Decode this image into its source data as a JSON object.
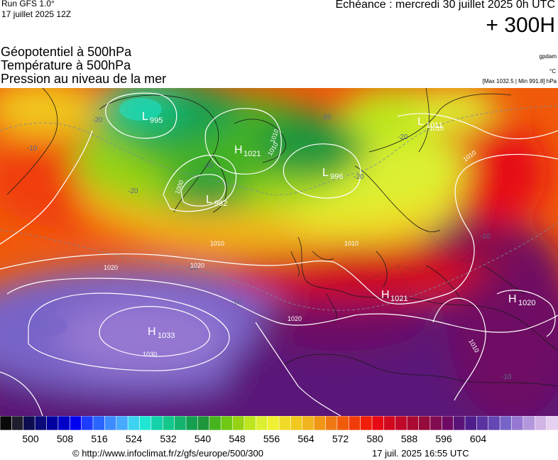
{
  "header": {
    "run": "Run GFS 1.0°",
    "date": "17 juillet 2025 12Z",
    "echeance": "Echéance : mercredi 30 juillet 2025 0h UTC",
    "horizon": "+ 300H"
  },
  "layers": [
    "Géopotentiel à 500hPa",
    "Température à 500hPa",
    "Pression au niveau de la mer"
  ],
  "units": {
    "geopotential": "gpdam",
    "temperature": "°C"
  },
  "pressure_range": "[Max 1032.5 | Min 991.8] hPa",
  "pressure_centers": [
    {
      "type": "L",
      "value": "992"
    },
    {
      "type": "L",
      "value": "996"
    },
    {
      "type": "L",
      "value": "995"
    },
    {
      "type": "L",
      "value": "1011"
    },
    {
      "type": "H",
      "value": "1021"
    },
    {
      "type": "H",
      "value": "1033"
    },
    {
      "type": "H",
      "value": "1021"
    },
    {
      "type": "H",
      "value": "1020"
    }
  ],
  "isobar_labels": [
    "1000",
    "1010",
    "1010",
    "1010",
    "1010",
    "1020",
    "1020",
    "1020",
    "1030",
    "1010",
    "1010",
    "1010"
  ],
  "temperature_labels": [
    "-20",
    "-20",
    "-20",
    "-20",
    "-20",
    "-20",
    "-10",
    "-10",
    "-10",
    "-10",
    "-10"
  ],
  "legend": {
    "colors": [
      "#0a0a0a",
      "#1e1e2e",
      "#0c0c50",
      "#0a0a78",
      "#0000a0",
      "#0000c8",
      "#0000f0",
      "#1e3cff",
      "#2864ff",
      "#3c8cff",
      "#46aaff",
      "#3cd2f0",
      "#1ee6d2",
      "#14d2aa",
      "#14c88c",
      "#14b46e",
      "#14a050",
      "#1e963c",
      "#46b41e",
      "#6ec814",
      "#96d214",
      "#bee61e",
      "#dcf032",
      "#f0f032",
      "#f0dc28",
      "#f0c81e",
      "#f0b41e",
      "#f09614",
      "#f07814",
      "#f05a0a",
      "#f03c0a",
      "#f01e0a",
      "#e60a14",
      "#d2081e",
      "#c00828",
      "#aa0a32",
      "#960a3c",
      "#820a50",
      "#6e0a64",
      "#5a1478",
      "#501e8c",
      "#5a32a0",
      "#6446b4",
      "#7864c8",
      "#9678d2",
      "#b496dc",
      "#d2b4e6",
      "#e6d2f0"
    ],
    "ticks": [
      "500",
      "508",
      "516",
      "524",
      "532",
      "540",
      "548",
      "556",
      "564",
      "572",
      "580",
      "588",
      "596",
      "604"
    ]
  },
  "footer": {
    "copyright": "© http://www.infoclimat.fr/z/gfs/europe/500/300",
    "generated": "17 juil. 2025 16:55 UTC"
  }
}
